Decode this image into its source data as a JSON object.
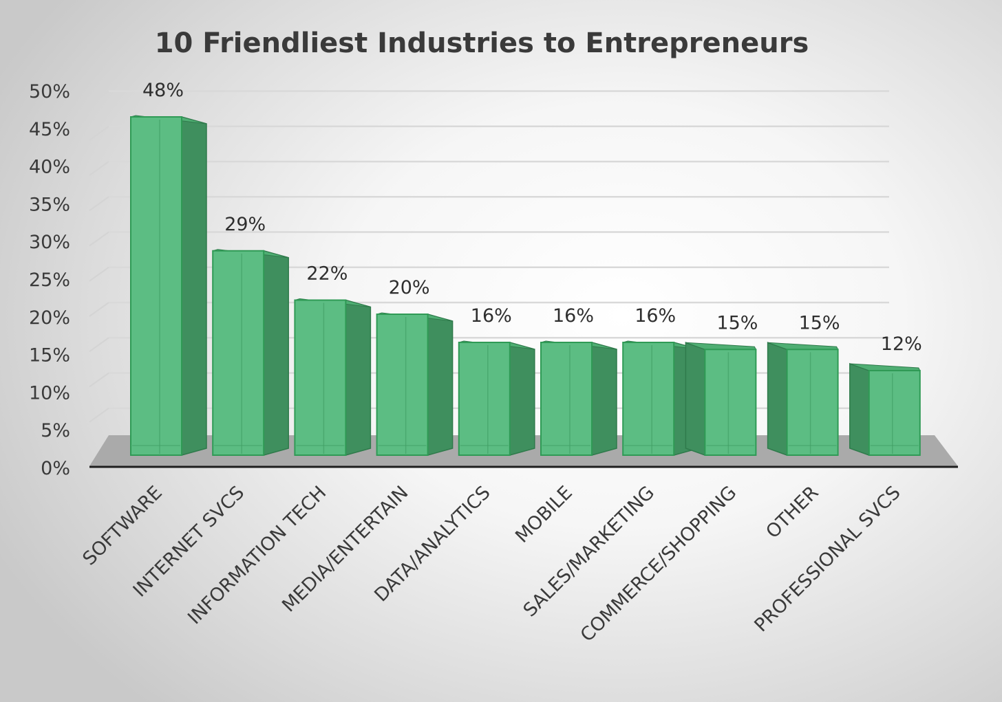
{
  "chart_data": {
    "type": "bar",
    "title": "10 Friendliest Industries to Entrepreneurs",
    "xlabel": "",
    "ylabel": "",
    "ylim": [
      0,
      50
    ],
    "ytick_step": 5,
    "ytick_labels": [
      "0%",
      "5%",
      "10%",
      "15%",
      "20%",
      "25%",
      "30%",
      "35%",
      "40%",
      "45%",
      "50%"
    ],
    "categories": [
      "SOFTWARE",
      "INTERNET SVCS",
      "INFORMATION TECH",
      "MEDIA/ENTERTAIN",
      "DATA/ANALYTICS",
      "MOBILE",
      "SALES/MARKETING",
      "COMMERCE/SHOPPING",
      "OTHER",
      "PROFESSIONAL SVCS"
    ],
    "values": [
      48,
      29,
      22,
      20,
      16,
      16,
      16,
      15,
      15,
      12
    ],
    "data_labels": [
      "48%",
      "29%",
      "22%",
      "20%",
      "16%",
      "16%",
      "16%",
      "15%",
      "15%",
      "12%"
    ],
    "grid": true,
    "legend": "none",
    "style": "3d-column",
    "bar_color": "#5cbd83",
    "bar_side_color": "#3f8f5e",
    "bar_edge_color": "#2f9a55"
  }
}
